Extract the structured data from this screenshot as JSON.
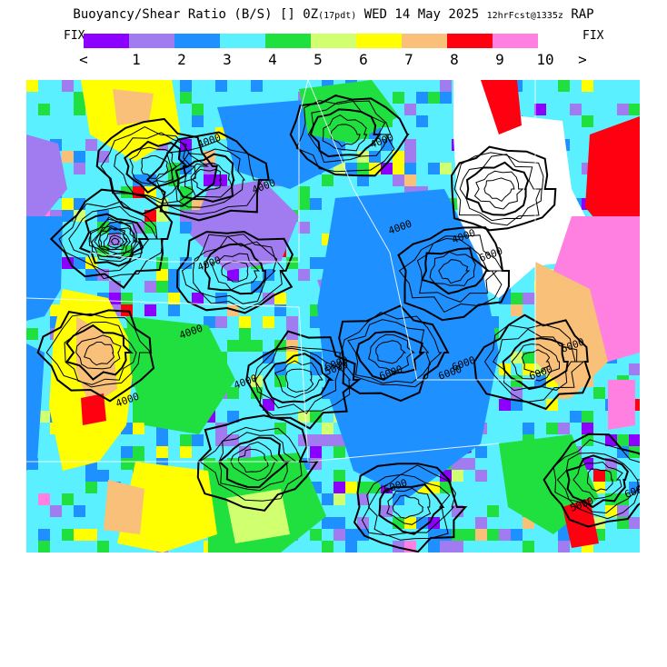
{
  "header": {
    "title_main": "Buoyancy/Shear Ratio (B/S) [] 0Z",
    "title_pdt": "(17pdt)",
    "title_date": "WED 14 May 2025",
    "title_run": "12hrFcst@1335z",
    "title_model": "RAP"
  },
  "colorbar": {
    "fix_left": "FIX",
    "fix_right": "FIX",
    "arrow_left": "<",
    "arrow_right": ">",
    "ticks": [
      "1",
      "2",
      "3",
      "4",
      "5",
      "6",
      "7",
      "8",
      "9",
      "10"
    ],
    "colors": [
      "#8c00ff",
      "#a07cf0",
      "#1e90ff",
      "#5af0ff",
      "#20e040",
      "#d0ff70",
      "#ffff00",
      "#f8c078",
      "#ff0010",
      "#ff80e0"
    ]
  },
  "map": {
    "contour_labels": [
      "4000",
      "4000",
      "4000",
      "4000",
      "4000",
      "4000",
      "4000",
      "4000",
      "4000",
      "6000",
      "6000",
      "6000",
      "6000",
      "6000",
      "6000",
      "6000",
      "6000",
      "5000",
      "5000",
      "6000"
    ]
  }
}
